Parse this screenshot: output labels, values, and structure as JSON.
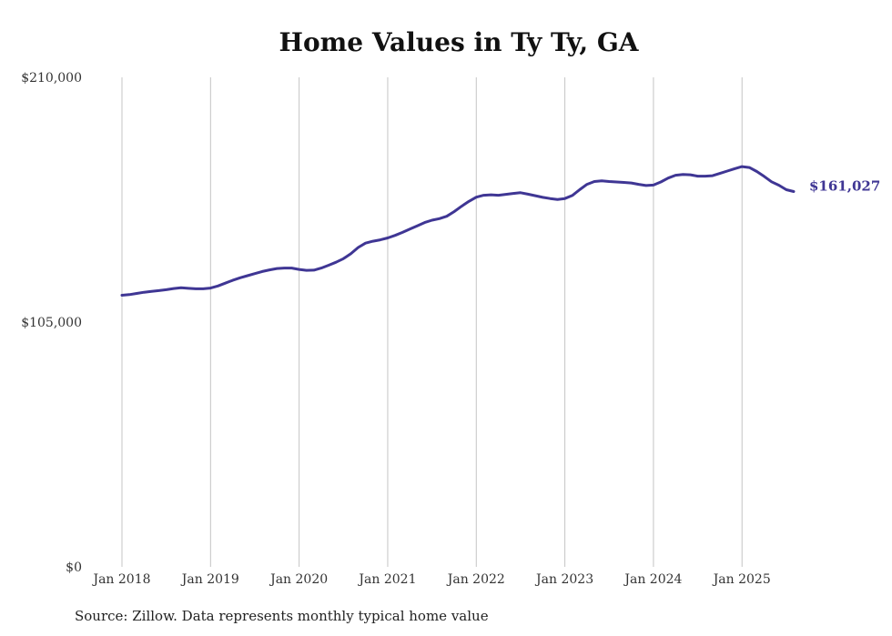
{
  "page": {
    "title": "Home Values in Ty Ty, GA",
    "source": "Source: Zillow. Data represents monthly typical home value"
  },
  "colors": {
    "line": "#3f3694",
    "grid": "#c4c4c4",
    "text": "#333333"
  },
  "chart_data": {
    "type": "line",
    "title": "Home Values in Ty Ty, GA",
    "xlabel": "",
    "ylabel": "",
    "ylim": [
      0,
      210000
    ],
    "yticks": [
      0,
      105000,
      210000
    ],
    "ytick_labels": [
      "$0",
      "$105,000",
      "$210,000"
    ],
    "xticks": [
      "2018-01",
      "2019-01",
      "2020-01",
      "2021-01",
      "2022-01",
      "2023-01",
      "2024-01",
      "2025-01"
    ],
    "xtick_labels": [
      "Jan 2018",
      "Jan 2019",
      "Jan 2020",
      "Jan 2021",
      "Jan 2022",
      "Jan 2023",
      "Jan 2024",
      "Jan 2025"
    ],
    "grid": "vertical",
    "end_label": "$161,027",
    "series": [
      {
        "x": [
          "2018-01",
          "2018-02",
          "2018-03",
          "2018-04",
          "2018-05",
          "2018-06",
          "2018-07",
          "2018-08",
          "2018-09",
          "2018-10",
          "2018-11",
          "2018-12",
          "2019-01",
          "2019-02",
          "2019-03",
          "2019-04",
          "2019-05",
          "2019-06",
          "2019-07",
          "2019-08",
          "2019-09",
          "2019-10",
          "2019-11",
          "2019-12",
          "2020-01",
          "2020-02",
          "2020-03",
          "2020-04",
          "2020-05",
          "2020-06",
          "2020-07",
          "2020-08",
          "2020-09",
          "2020-10",
          "2020-11",
          "2020-12",
          "2021-01",
          "2021-02",
          "2021-03",
          "2021-04",
          "2021-05",
          "2021-06",
          "2021-07",
          "2021-08",
          "2021-09",
          "2021-10",
          "2021-11",
          "2021-12",
          "2022-01",
          "2022-02",
          "2022-03",
          "2022-04",
          "2022-05",
          "2022-06",
          "2022-07",
          "2022-08",
          "2022-09",
          "2022-10",
          "2022-11",
          "2022-12",
          "2023-01",
          "2023-02",
          "2023-03",
          "2023-04",
          "2023-05",
          "2023-06",
          "2023-07",
          "2023-08",
          "2023-09",
          "2023-10",
          "2023-11",
          "2023-12",
          "2024-01",
          "2024-02",
          "2024-03",
          "2024-04",
          "2024-05",
          "2024-06",
          "2024-07",
          "2024-08",
          "2024-09",
          "2024-10",
          "2024-11",
          "2024-12",
          "2025-01",
          "2025-02",
          "2025-03",
          "2025-04",
          "2025-05",
          "2025-06",
          "2025-07",
          "2025-08"
        ],
        "values": [
          116500,
          116800,
          117300,
          117800,
          118200,
          118500,
          118900,
          119400,
          119700,
          119500,
          119300,
          119300,
          119600,
          120500,
          121700,
          122900,
          124000,
          124900,
          125800,
          126700,
          127400,
          128000,
          128200,
          128200,
          127600,
          127200,
          127300,
          128200,
          129400,
          130700,
          132200,
          134300,
          137000,
          138900,
          139700,
          140300,
          141100,
          142200,
          143500,
          144900,
          146300,
          147700,
          148700,
          149400,
          150400,
          152400,
          154700,
          156800,
          158600,
          159400,
          159600,
          159400,
          159800,
          160200,
          160500,
          159900,
          159200,
          158500,
          158000,
          157600,
          158000,
          159300,
          161800,
          164100,
          165300,
          165600,
          165300,
          165100,
          164900,
          164700,
          164100,
          163600,
          163800,
          165100,
          166800,
          168000,
          168300,
          168200,
          167600,
          167600,
          167800,
          168800,
          169800,
          170800,
          171700,
          171300,
          169600,
          167500,
          165200,
          163700,
          161800,
          161027
        ]
      }
    ]
  }
}
